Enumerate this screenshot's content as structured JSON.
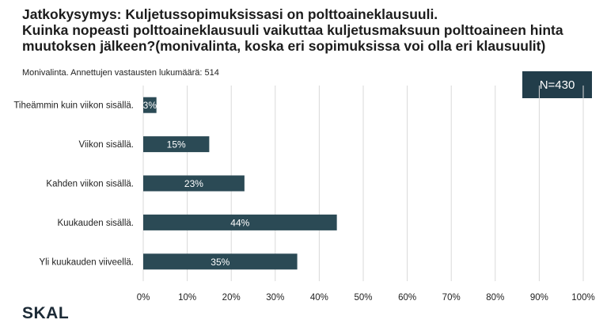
{
  "title_lines": [
    "Jatkokysymys: Kuljetussopimuksissasi on polttoaineklausuuli.",
    "Kuinka nopeasti polttoaineklausuuli vaikuttaa kuljetusmaksuun polttoaineen hinta",
    "muutoksen jälkeen?(monivalinta, koska eri sopimuksissa voi olla eri klausuulit)"
  ],
  "subtitle": "Monivalinta. Annettujen vastausten lukumäärä: 514",
  "n_badge": "N=430",
  "logo_text": "SKAL",
  "colors": {
    "bar": "#2b4a55",
    "badge": "#223d4a",
    "grid": "#d9d9d9"
  },
  "chart_data": {
    "type": "bar",
    "orientation": "horizontal",
    "categories": [
      "Tiheämmin kuin viikon sisällä.",
      "Viikon sisällä.",
      "Kahden viikon sisällä.",
      "Kuukauden sisällä.",
      "Yli kuukauden viiveellä."
    ],
    "values": [
      3,
      15,
      23,
      44,
      35
    ],
    "data_labels": [
      "3%",
      "15%",
      "23%",
      "44%",
      "35%"
    ],
    "xlim": [
      0,
      100
    ],
    "xticks": [
      "0%",
      "10%",
      "20%",
      "30%",
      "40%",
      "50%",
      "60%",
      "70%",
      "80%",
      "90%",
      "100%"
    ],
    "grid": true,
    "legend": "none"
  }
}
